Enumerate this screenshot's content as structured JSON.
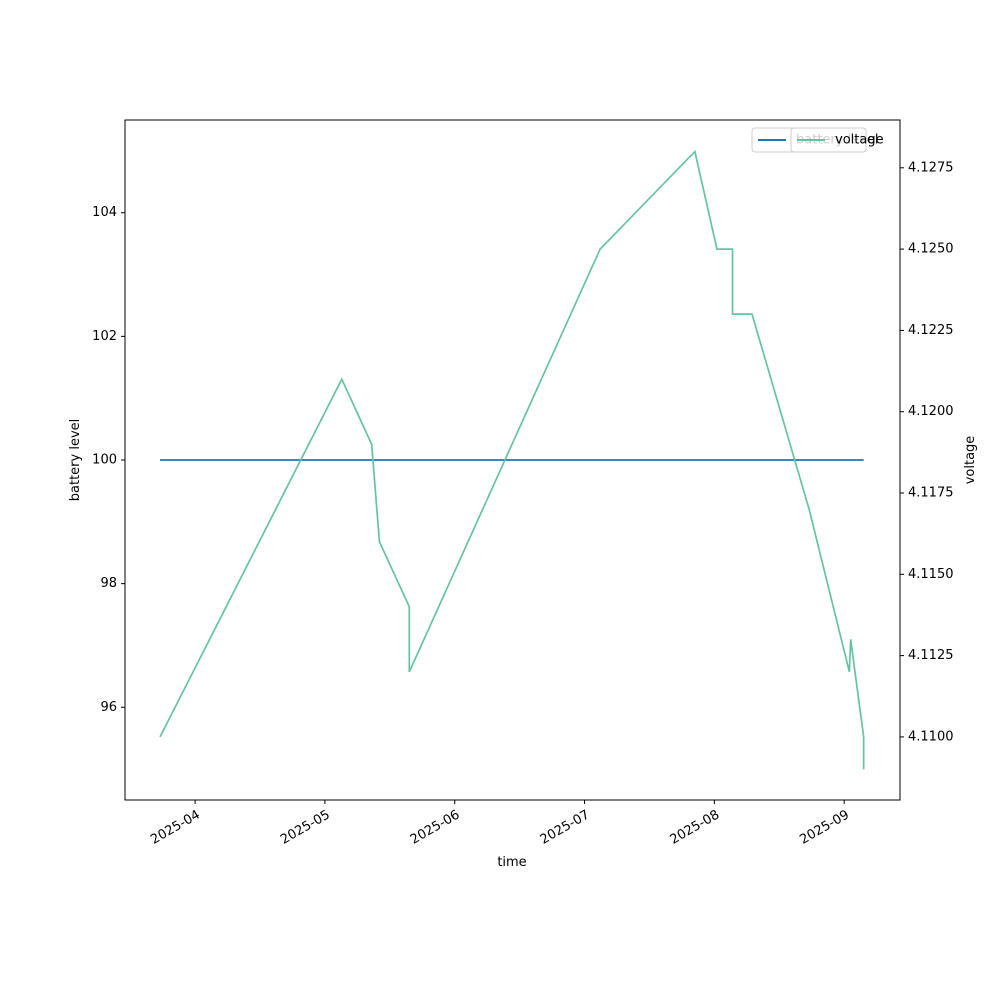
{
  "chart_data": {
    "type": "line",
    "x_label": "time",
    "y_label": "battery level",
    "y2_label": "voltage",
    "x": [
      3.73,
      5.13,
      5.36,
      5.42,
      5.65,
      5.65,
      7.12,
      7.85,
      8.02,
      8.14,
      8.14,
      8.29,
      8.73,
      9.04,
      9.05,
      9.15,
      9.15
    ],
    "series": [
      {
        "name": "battery level",
        "color": "#1f77b4",
        "axis": "y",
        "values": [
          100,
          100,
          100,
          100,
          100,
          100,
          100,
          100,
          100,
          100,
          100,
          100,
          100,
          100,
          100,
          100,
          100
        ]
      },
      {
        "name": "voltage",
        "color": "#66c2a5",
        "axis": "y2",
        "values": [
          4.11,
          4.121,
          4.119,
          4.116,
          4.114,
          4.112,
          4.125,
          4.128,
          4.125,
          4.125,
          4.123,
          4.123,
          4.117,
          4.112,
          4.113,
          4.11,
          4.109
        ]
      }
    ],
    "xlim": [
      3.46,
      9.43
    ],
    "xticks": [
      {
        "value": 4,
        "label": "2025-04"
      },
      {
        "value": 5,
        "label": "2025-05"
      },
      {
        "value": 6,
        "label": "2025-06"
      },
      {
        "value": 7,
        "label": "2025-07"
      },
      {
        "value": 8,
        "label": "2025-08"
      },
      {
        "value": 9,
        "label": "2025-09"
      }
    ],
    "ylim": [
      94.5,
      105.5
    ],
    "yticks": [
      96,
      98,
      100,
      102,
      104
    ],
    "y2lim": [
      4.10806,
      4.12897
    ],
    "y2ticks": [
      {
        "value": 4.11,
        "label": "4.1100"
      },
      {
        "value": 4.1125,
        "label": "4.1125"
      },
      {
        "value": 4.115,
        "label": "4.1150"
      },
      {
        "value": 4.1175,
        "label": "4.1175"
      },
      {
        "value": 4.12,
        "label": "4.1200"
      },
      {
        "value": 4.1225,
        "label": "4.1225"
      },
      {
        "value": 4.125,
        "label": "4.1250"
      },
      {
        "value": 4.1275,
        "label": "4.1275"
      }
    ]
  }
}
